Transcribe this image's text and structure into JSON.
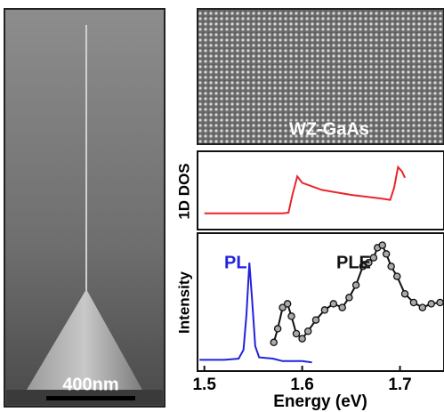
{
  "sem_image": {
    "scale_bar_label": "400nm"
  },
  "tem_image": {
    "label": "WZ-GaAs"
  },
  "chart_data": [
    {
      "type": "line",
      "ylabel": "1D DOS",
      "xlim": [
        1.493,
        1.745
      ],
      "ylim": [
        0,
        1
      ],
      "series": [
        {
          "color": "#e8262a",
          "x": [
            1.5,
            1.58,
            1.586,
            1.59,
            1.595,
            1.6,
            1.62,
            1.65,
            1.68,
            1.69,
            1.694,
            1.698,
            1.702,
            1.705
          ],
          "values": [
            0.19,
            0.19,
            0.2,
            0.45,
            0.71,
            0.62,
            0.52,
            0.45,
            0.4,
            0.38,
            0.55,
            0.84,
            0.78,
            0.69
          ]
        }
      ]
    },
    {
      "type": "line",
      "ylabel": "Intensity",
      "xlabel": "Energy (eV)",
      "xlim": [
        1.493,
        1.745
      ],
      "ylim": [
        0,
        1
      ],
      "xticks": [
        1.5,
        1.6,
        1.7
      ],
      "series": [
        {
          "name": "PL",
          "color": "#2222dd",
          "markers": false,
          "x": [
            1.495,
            1.52,
            1.535,
            1.54,
            1.543,
            1.546,
            1.549,
            1.552,
            1.556,
            1.57,
            1.58,
            1.6,
            1.61
          ],
          "values": [
            0.04,
            0.04,
            0.05,
            0.12,
            0.4,
            0.82,
            0.5,
            0.15,
            0.06,
            0.05,
            0.03,
            0.03,
            0.02
          ]
        },
        {
          "name": "PLE",
          "color": "#111111",
          "markers": true,
          "x": [
            1.571,
            1.575,
            1.58,
            1.585,
            1.589,
            1.594,
            1.6,
            1.606,
            1.614,
            1.623,
            1.632,
            1.641,
            1.648,
            1.655,
            1.662,
            1.668,
            1.673,
            1.677,
            1.682,
            1.686,
            1.691,
            1.697,
            1.705,
            1.714,
            1.723,
            1.732,
            1.741
          ],
          "values": [
            0.18,
            0.29,
            0.46,
            0.49,
            0.39,
            0.25,
            0.21,
            0.27,
            0.36,
            0.44,
            0.49,
            0.46,
            0.54,
            0.64,
            0.79,
            0.82,
            0.86,
            0.94,
            0.96,
            0.89,
            0.79,
            0.71,
            0.57,
            0.5,
            0.46,
            0.49,
            0.5
          ]
        }
      ]
    }
  ]
}
